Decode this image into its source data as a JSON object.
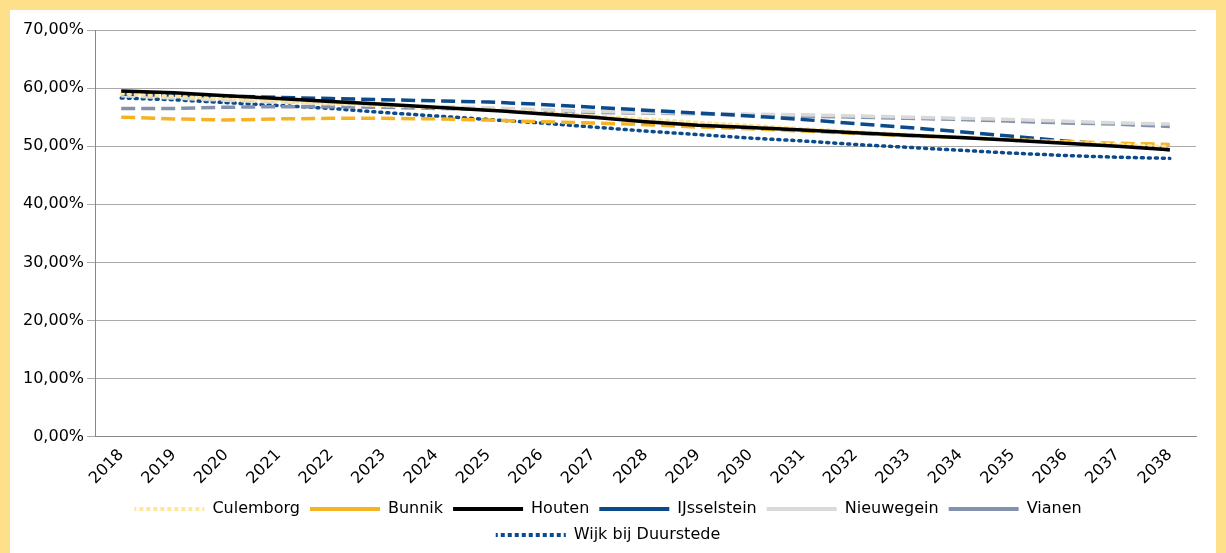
{
  "chart_data": {
    "type": "line",
    "categories": [
      "2018",
      "2019",
      "2020",
      "2021",
      "2022",
      "2023",
      "2024",
      "2025",
      "2026",
      "2027",
      "2028",
      "2029",
      "2030",
      "2031",
      "2032",
      "2033",
      "2034",
      "2035",
      "2036",
      "2037",
      "2038"
    ],
    "series": [
      {
        "name": "Culemborg",
        "color": "#ffe699",
        "line_style": "dotted",
        "values": [
          59.0,
          58.6,
          58.2,
          57.8,
          57.3,
          57.0,
          56.6,
          56.3,
          55.8,
          55.2,
          54.7,
          54.1,
          53.6,
          53.0,
          52.5,
          52.0,
          51.5,
          51.1,
          50.7,
          50.3,
          49.9
        ]
      },
      {
        "name": "Bunnik",
        "color": "#f5b324",
        "line_style": "dashed",
        "values": [
          55.0,
          54.7,
          54.5,
          54.7,
          54.8,
          54.8,
          54.7,
          54.5,
          54.2,
          54.0,
          53.7,
          53.3,
          53.0,
          52.6,
          52.2,
          51.8,
          51.5,
          51.1,
          50.8,
          50.5,
          50.3
        ]
      },
      {
        "name": "Houten",
        "color": "#000000",
        "line_style": "solid",
        "values": [
          59.5,
          59.2,
          58.7,
          58.2,
          57.7,
          57.2,
          56.7,
          56.2,
          55.6,
          55.0,
          54.2,
          53.6,
          53.2,
          52.8,
          52.3,
          51.9,
          51.5,
          51.0,
          50.5,
          50.0,
          49.4
        ]
      },
      {
        "name": "IJsselstein",
        "color": "#0b4a8b",
        "line_style": "dashed",
        "values": [
          59.0,
          58.8,
          58.6,
          58.4,
          58.2,
          58.0,
          57.8,
          57.6,
          57.2,
          56.7,
          56.2,
          55.7,
          55.2,
          54.6,
          53.9,
          53.2,
          52.5,
          51.7,
          50.9,
          50.2,
          49.4
        ]
      },
      {
        "name": "Nieuwegein",
        "color": "#d9d9d9",
        "line_style": "dashed",
        "values": [
          58.7,
          58.3,
          57.9,
          57.6,
          57.3,
          57.0,
          56.8,
          56.6,
          56.3,
          56.0,
          55.8,
          55.7,
          55.5,
          55.4,
          55.2,
          55.0,
          54.8,
          54.6,
          54.3,
          54.0,
          53.8
        ]
      },
      {
        "name": "Vianen",
        "color": "#8391ad",
        "line_style": "dashed",
        "values": [
          56.5,
          56.5,
          56.7,
          56.8,
          56.8,
          56.7,
          56.5,
          56.3,
          56.0,
          55.8,
          55.7,
          55.6,
          55.4,
          55.2,
          55.0,
          54.8,
          54.6,
          54.3,
          54.0,
          53.8,
          53.4
        ]
      },
      {
        "name": "Wijk bij Duurstede",
        "color": "#0b4a8b",
        "line_style": "dotted",
        "values": [
          58.3,
          58.0,
          57.5,
          57.0,
          56.5,
          55.8,
          55.2,
          54.6,
          54.0,
          53.3,
          52.6,
          52.0,
          51.4,
          50.9,
          50.3,
          49.8,
          49.3,
          48.8,
          48.4,
          48.1,
          47.9
        ]
      }
    ],
    "ylim": [
      0,
      70
    ],
    "yticks": [
      {
        "value": 0,
        "label": "0,00%"
      },
      {
        "value": 10,
        "label": "10,00%"
      },
      {
        "value": 20,
        "label": "20,00%"
      },
      {
        "value": 30,
        "label": "30,00%"
      },
      {
        "value": 40,
        "label": "40,00%"
      },
      {
        "value": 50,
        "label": "50,00%"
      },
      {
        "value": 60,
        "label": "60,00%"
      },
      {
        "value": 70,
        "label": "70,00%"
      }
    ],
    "grid": "y",
    "legend": "bottom",
    "marker": "none"
  }
}
